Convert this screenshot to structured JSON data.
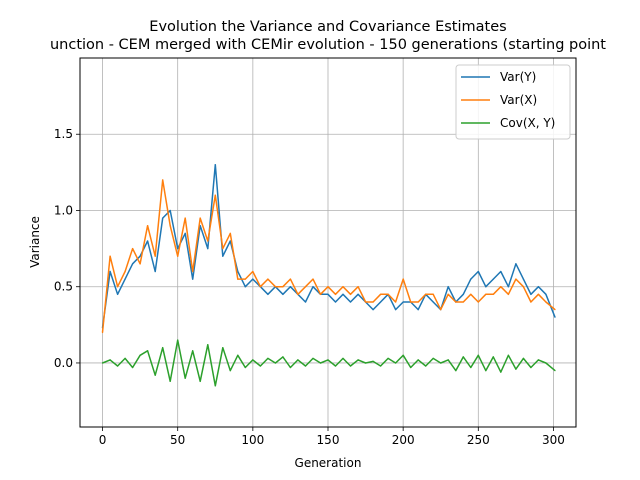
{
  "chart_data": {
    "type": "line",
    "title": "Evolution the Variance and Covariance Estimates",
    "subtitle": "unction - CEM merged with CEMir evolution - 150 generations (starting point",
    "xlabel": "Generation",
    "ylabel": "Variance",
    "xlim": [
      -15,
      315
    ],
    "ylim": [
      -0.42,
      2.0
    ],
    "xticks": [
      0,
      50,
      100,
      150,
      200,
      250,
      300
    ],
    "yticks": [
      0.0,
      0.5,
      1.0,
      1.5
    ],
    "xtick_labels": [
      "0",
      "50",
      "100",
      "150",
      "200",
      "250",
      "300"
    ],
    "ytick_labels": [
      "0.0",
      "0.5",
      "1.0",
      "1.5"
    ],
    "grid": true,
    "legend_position": "top-right",
    "legend": [
      "Var(Y)",
      "Var(X)",
      "Cov(X, Y)"
    ],
    "series": [
      {
        "name": "Var(Y)",
        "color": "#1f77b4",
        "x": [
          0,
          5,
          10,
          15,
          20,
          25,
          30,
          35,
          40,
          45,
          50,
          55,
          60,
          65,
          70,
          75,
          80,
          85,
          90,
          95,
          100,
          105,
          110,
          115,
          120,
          125,
          130,
          135,
          140,
          145,
          150,
          155,
          160,
          165,
          170,
          175,
          180,
          185,
          190,
          195,
          200,
          205,
          210,
          215,
          220,
          225,
          230,
          235,
          240,
          245,
          250,
          255,
          260,
          265,
          270,
          275,
          280,
          285,
          290,
          295,
          301
        ],
        "values": [
          0.23,
          0.6,
          0.45,
          0.55,
          0.65,
          0.7,
          0.8,
          0.6,
          0.95,
          1.0,
          0.75,
          0.85,
          0.55,
          0.9,
          0.75,
          1.3,
          0.7,
          0.8,
          0.6,
          0.5,
          0.55,
          0.5,
          0.45,
          0.5,
          0.45,
          0.5,
          0.45,
          0.4,
          0.5,
          0.45,
          0.45,
          0.4,
          0.45,
          0.4,
          0.45,
          0.4,
          0.35,
          0.4,
          0.45,
          0.35,
          0.4,
          0.4,
          0.35,
          0.45,
          0.4,
          0.35,
          0.5,
          0.4,
          0.45,
          0.55,
          0.6,
          0.5,
          0.55,
          0.6,
          0.5,
          0.65,
          0.55,
          0.45,
          0.5,
          0.45,
          0.3
        ]
      },
      {
        "name": "Var(X)",
        "color": "#ff7f0e",
        "x": [
          0,
          5,
          10,
          15,
          20,
          25,
          30,
          35,
          40,
          45,
          50,
          55,
          60,
          65,
          70,
          75,
          80,
          85,
          90,
          95,
          100,
          105,
          110,
          115,
          120,
          125,
          130,
          135,
          140,
          145,
          150,
          155,
          160,
          165,
          170,
          175,
          180,
          185,
          190,
          195,
          200,
          205,
          210,
          215,
          220,
          225,
          230,
          235,
          240,
          245,
          250,
          255,
          260,
          265,
          270,
          275,
          280,
          285,
          290,
          295,
          301
        ],
        "values": [
          0.2,
          0.7,
          0.5,
          0.6,
          0.75,
          0.65,
          0.9,
          0.7,
          1.2,
          0.9,
          0.7,
          0.95,
          0.6,
          0.95,
          0.8,
          1.1,
          0.75,
          0.85,
          0.55,
          0.55,
          0.6,
          0.5,
          0.55,
          0.5,
          0.5,
          0.55,
          0.45,
          0.5,
          0.55,
          0.45,
          0.5,
          0.45,
          0.5,
          0.45,
          0.5,
          0.4,
          0.4,
          0.45,
          0.45,
          0.4,
          0.55,
          0.4,
          0.4,
          0.45,
          0.45,
          0.35,
          0.45,
          0.4,
          0.4,
          0.45,
          0.4,
          0.45,
          0.45,
          0.5,
          0.45,
          0.55,
          0.5,
          0.4,
          0.45,
          0.4,
          0.35
        ]
      },
      {
        "name": "Cov(X, Y)",
        "color": "#2ca02c",
        "x": [
          0,
          5,
          10,
          15,
          20,
          25,
          30,
          35,
          40,
          45,
          50,
          55,
          60,
          65,
          70,
          75,
          80,
          85,
          90,
          95,
          100,
          105,
          110,
          115,
          120,
          125,
          130,
          135,
          140,
          145,
          150,
          155,
          160,
          165,
          170,
          175,
          180,
          185,
          190,
          195,
          200,
          205,
          210,
          215,
          220,
          225,
          230,
          235,
          240,
          245,
          250,
          255,
          260,
          265,
          270,
          275,
          280,
          285,
          290,
          295,
          301
        ],
        "values": [
          0.0,
          0.02,
          -0.02,
          0.03,
          -0.03,
          0.05,
          0.08,
          -0.08,
          0.1,
          -0.12,
          0.15,
          -0.1,
          0.08,
          -0.12,
          0.12,
          -0.15,
          0.1,
          -0.05,
          0.05,
          -0.03,
          0.02,
          -0.02,
          0.03,
          0.0,
          0.04,
          -0.03,
          0.02,
          -0.02,
          0.03,
          0.0,
          0.02,
          -0.02,
          0.03,
          -0.02,
          0.02,
          0.0,
          0.01,
          -0.02,
          0.03,
          0.0,
          0.05,
          -0.03,
          0.02,
          -0.02,
          0.03,
          0.0,
          0.02,
          -0.05,
          0.04,
          -0.03,
          0.05,
          -0.05,
          0.04,
          -0.06,
          0.05,
          -0.04,
          0.03,
          -0.03,
          0.02,
          0.0,
          -0.05
        ]
      }
    ]
  }
}
